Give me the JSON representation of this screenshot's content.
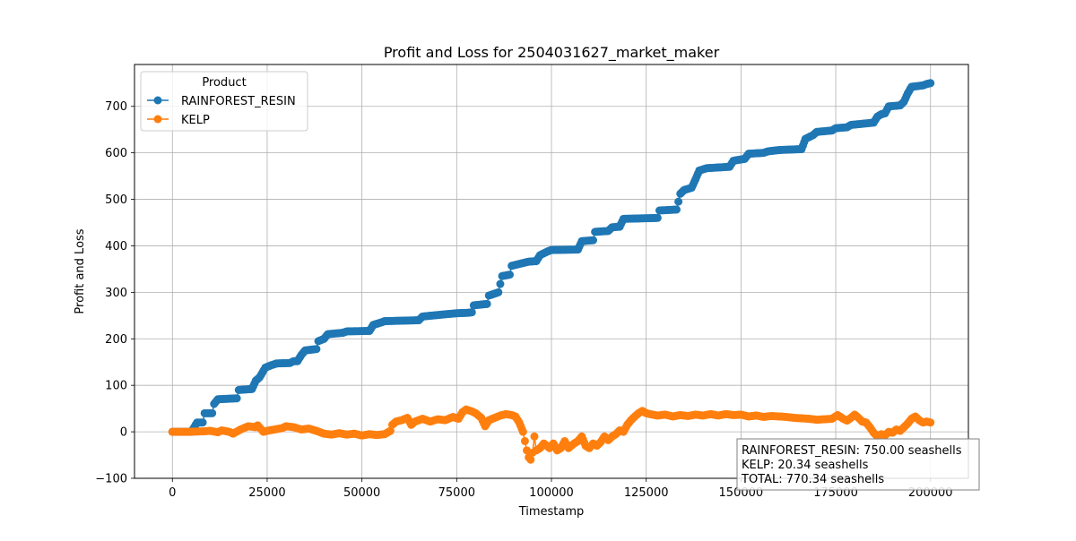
{
  "chart_data": {
    "type": "line",
    "title": "Profit and Loss for 2504031627_market_maker",
    "xlabel": "Timestamp",
    "ylabel": "Profit and Loss",
    "xlim": [
      -10000,
      210000
    ],
    "ylim": [
      -100,
      790
    ],
    "x_ticks": [
      0,
      25000,
      50000,
      75000,
      100000,
      125000,
      150000,
      175000,
      200000
    ],
    "x_tick_labels": [
      "0",
      "25000",
      "50000",
      "75000",
      "100000",
      "125000",
      "150000",
      "175000",
      "200000"
    ],
    "y_ticks": [
      -100,
      0,
      100,
      200,
      300,
      400,
      500,
      600,
      700
    ],
    "y_tick_labels": [
      "−100",
      "0",
      "100",
      "200",
      "300",
      "400",
      "500",
      "600",
      "700"
    ],
    "grid": true,
    "legend": {
      "title": "Product",
      "placement": "top-left",
      "entries": [
        "RAINFOREST_RESIN",
        "KELP"
      ]
    },
    "series": [
      {
        "name": "RAINFOREST_RESIN",
        "color": "#1f77b4",
        "marker": "circle",
        "points": [
          [
            0,
            0
          ],
          [
            5000,
            0
          ],
          [
            6500,
            20
          ],
          [
            8000,
            20
          ],
          [
            8500,
            40
          ],
          [
            10500,
            40
          ],
          [
            11000,
            60
          ],
          [
            12000,
            70
          ],
          [
            17000,
            72
          ],
          [
            17500,
            90
          ],
          [
            21000,
            92
          ],
          [
            22000,
            110
          ],
          [
            23000,
            117
          ],
          [
            24500,
            138
          ],
          [
            26000,
            143
          ],
          [
            27500,
            147
          ],
          [
            31000,
            148
          ],
          [
            32000,
            152
          ],
          [
            33000,
            152
          ],
          [
            34000,
            165
          ],
          [
            35000,
            175
          ],
          [
            38000,
            178
          ],
          [
            38500,
            195
          ],
          [
            40000,
            200
          ],
          [
            41000,
            210
          ],
          [
            45000,
            213
          ],
          [
            46000,
            216
          ],
          [
            52000,
            217
          ],
          [
            53000,
            230
          ],
          [
            55000,
            235
          ],
          [
            56000,
            238
          ],
          [
            65000,
            240
          ],
          [
            66000,
            248
          ],
          [
            71000,
            252
          ],
          [
            75000,
            255
          ],
          [
            78000,
            256
          ],
          [
            79000,
            257
          ],
          [
            79500,
            272
          ],
          [
            83000,
            275
          ],
          [
            83500,
            293
          ],
          [
            86000,
            300
          ],
          [
            86500,
            318
          ],
          [
            87000,
            335
          ],
          [
            89000,
            338
          ],
          [
            89500,
            357
          ],
          [
            92000,
            362
          ],
          [
            94000,
            366
          ],
          [
            96000,
            367
          ],
          [
            97000,
            380
          ],
          [
            99000,
            388
          ],
          [
            100000,
            391
          ],
          [
            107000,
            392
          ],
          [
            108000,
            410
          ],
          [
            111000,
            412
          ],
          [
            111500,
            430
          ],
          [
            115000,
            432
          ],
          [
            116000,
            440
          ],
          [
            118000,
            441
          ],
          [
            119000,
            458
          ],
          [
            128000,
            460
          ],
          [
            128500,
            476
          ],
          [
            133000,
            478
          ],
          [
            133500,
            495
          ],
          [
            134000,
            512
          ],
          [
            135000,
            520
          ],
          [
            137000,
            525
          ],
          [
            138000,
            543
          ],
          [
            139000,
            562
          ],
          [
            141000,
            567
          ],
          [
            147000,
            570
          ],
          [
            148000,
            583
          ],
          [
            151000,
            587
          ],
          [
            152000,
            598
          ],
          [
            156000,
            600
          ],
          [
            157000,
            603
          ],
          [
            160000,
            606
          ],
          [
            166000,
            608
          ],
          [
            167000,
            630
          ],
          [
            169000,
            638
          ],
          [
            170000,
            645
          ],
          [
            174000,
            648
          ],
          [
            175000,
            653
          ],
          [
            178000,
            655
          ],
          [
            179000,
            660
          ],
          [
            185000,
            665
          ],
          [
            186000,
            678
          ],
          [
            187000,
            683
          ],
          [
            188000,
            685
          ],
          [
            189000,
            700
          ],
          [
            192000,
            702
          ],
          [
            193000,
            710
          ],
          [
            194000,
            728
          ],
          [
            195000,
            742
          ],
          [
            198000,
            745
          ],
          [
            199000,
            748
          ],
          [
            200000,
            750
          ]
        ]
      },
      {
        "name": "KELP",
        "color": "#ff7f0e",
        "marker": "circle",
        "points": [
          [
            0,
            0
          ],
          [
            4000,
            0
          ],
          [
            8000,
            1
          ],
          [
            10000,
            2
          ],
          [
            12000,
            -1
          ],
          [
            13000,
            3
          ],
          [
            15000,
            0
          ],
          [
            16000,
            -4
          ],
          [
            18000,
            5
          ],
          [
            20000,
            12
          ],
          [
            22000,
            10
          ],
          [
            22500,
            14
          ],
          [
            24000,
            0
          ],
          [
            25500,
            3
          ],
          [
            27000,
            5
          ],
          [
            29000,
            8
          ],
          [
            30000,
            12
          ],
          [
            32000,
            10
          ],
          [
            34000,
            5
          ],
          [
            36000,
            7
          ],
          [
            38000,
            2
          ],
          [
            40000,
            -4
          ],
          [
            42000,
            -6
          ],
          [
            44000,
            -3
          ],
          [
            46000,
            -6
          ],
          [
            48000,
            -4
          ],
          [
            50000,
            -8
          ],
          [
            52000,
            -5
          ],
          [
            54000,
            -7
          ],
          [
            56000,
            -5
          ],
          [
            57500,
            2
          ],
          [
            58000,
            15
          ],
          [
            59000,
            22
          ],
          [
            60500,
            25
          ],
          [
            62000,
            30
          ],
          [
            63000,
            15
          ],
          [
            64000,
            22
          ],
          [
            66000,
            28
          ],
          [
            68000,
            22
          ],
          [
            70000,
            27
          ],
          [
            72000,
            25
          ],
          [
            74000,
            32
          ],
          [
            75500,
            28
          ],
          [
            76500,
            42
          ],
          [
            77500,
            48
          ],
          [
            79000,
            44
          ],
          [
            80000,
            40
          ],
          [
            81500,
            30
          ],
          [
            82500,
            12
          ],
          [
            83500,
            25
          ],
          [
            85000,
            30
          ],
          [
            86500,
            35
          ],
          [
            88000,
            38
          ],
          [
            89500,
            36
          ],
          [
            90500,
            33
          ],
          [
            91500,
            20
          ],
          [
            92500,
            0
          ],
          [
            93000,
            -20
          ],
          [
            93500,
            -40
          ],
          [
            94000,
            -55
          ],
          [
            94500,
            -60
          ],
          [
            95000,
            -45
          ],
          [
            95500,
            -10
          ],
          [
            96000,
            -40
          ],
          [
            97000,
            -35
          ],
          [
            98000,
            -25
          ],
          [
            99500,
            -35
          ],
          [
            100500,
            -25
          ],
          [
            101500,
            -40
          ],
          [
            102500,
            -35
          ],
          [
            103500,
            -20
          ],
          [
            104500,
            -35
          ],
          [
            106000,
            -25
          ],
          [
            107000,
            -20
          ],
          [
            108000,
            -10
          ],
          [
            109000,
            -30
          ],
          [
            110000,
            -35
          ],
          [
            111000,
            -25
          ],
          [
            112000,
            -30
          ],
          [
            113000,
            -22
          ],
          [
            114000,
            -10
          ],
          [
            115000,
            -18
          ],
          [
            116000,
            -10
          ],
          [
            117000,
            -5
          ],
          [
            118000,
            3
          ],
          [
            119000,
            0
          ],
          [
            120000,
            15
          ],
          [
            121000,
            25
          ],
          [
            122000,
            33
          ],
          [
            123000,
            40
          ],
          [
            124000,
            45
          ],
          [
            125000,
            40
          ],
          [
            126000,
            38
          ],
          [
            128000,
            35
          ],
          [
            130000,
            37
          ],
          [
            132000,
            33
          ],
          [
            134000,
            36
          ],
          [
            136000,
            34
          ],
          [
            138000,
            37
          ],
          [
            140000,
            35
          ],
          [
            142000,
            38
          ],
          [
            144000,
            35
          ],
          [
            146000,
            38
          ],
          [
            148000,
            36
          ],
          [
            150000,
            37
          ],
          [
            152000,
            33
          ],
          [
            154000,
            35
          ],
          [
            156000,
            32
          ],
          [
            158000,
            34
          ],
          [
            160000,
            33
          ],
          [
            162000,
            32
          ],
          [
            164000,
            30
          ],
          [
            166000,
            29
          ],
          [
            168000,
            28
          ],
          [
            170000,
            26
          ],
          [
            172000,
            27
          ],
          [
            174000,
            28
          ],
          [
            175500,
            36
          ],
          [
            177000,
            28
          ],
          [
            178000,
            24
          ],
          [
            179000,
            30
          ],
          [
            180000,
            37
          ],
          [
            181000,
            30
          ],
          [
            182000,
            22
          ],
          [
            183000,
            20
          ],
          [
            184000,
            10
          ],
          [
            185000,
            -2
          ],
          [
            186000,
            -10
          ],
          [
            187000,
            -5
          ],
          [
            188000,
            -8
          ],
          [
            189000,
            0
          ],
          [
            190000,
            -2
          ],
          [
            191000,
            5
          ],
          [
            192000,
            2
          ],
          [
            193000,
            10
          ],
          [
            194000,
            18
          ],
          [
            195000,
            28
          ],
          [
            196000,
            33
          ],
          [
            197000,
            25
          ],
          [
            198000,
            20
          ],
          [
            199000,
            22
          ],
          [
            200000,
            20
          ]
        ]
      }
    ],
    "annotation": {
      "lines": [
        "RAINFOREST_RESIN: 750.00 seashells",
        "KELP: 20.34 seashells",
        "TOTAL: 770.34 seashells"
      ],
      "placement": "bottom-right"
    }
  }
}
